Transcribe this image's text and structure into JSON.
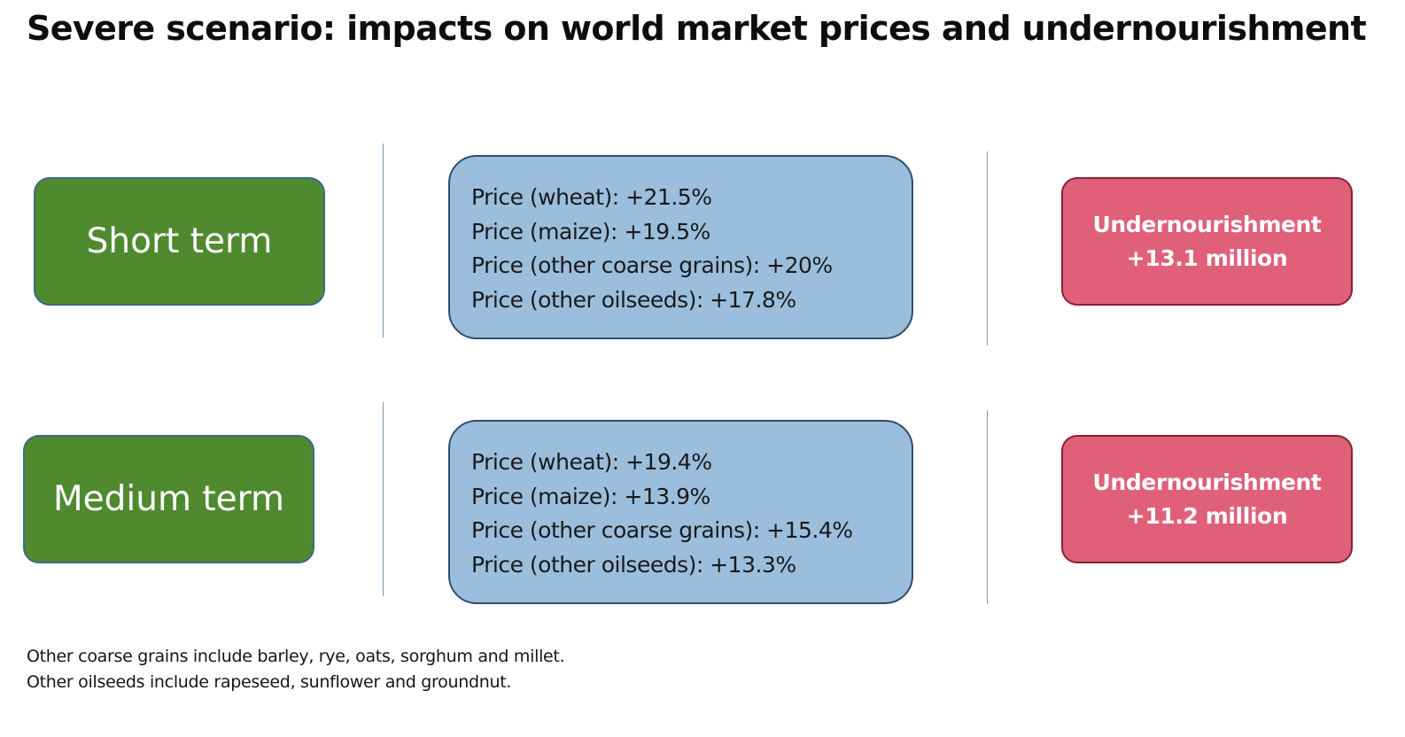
{
  "title": "Severe scenario: impacts on world market prices and undernourishment",
  "colors": {
    "term_box": "#4f8a2f",
    "price_box": "#9bbedd",
    "impact_box": "#e0607a"
  },
  "rows": [
    {
      "term": "Short term",
      "prices": [
        "Price (wheat): +21.5%",
        "Price (maize): +19.5%",
        "Price (other coarse grains): +20%",
        "Price (other oilseeds): +17.8%"
      ],
      "impact_label": "Undernourishment",
      "impact_value": "+13.1 million"
    },
    {
      "term": "Medium term",
      "prices": [
        "Price (wheat): +19.4%",
        "Price (maize): +13.9%",
        "Price (other coarse grains): +15.4%",
        "Price (other oilseeds): +13.3%"
      ],
      "impact_label": "Undernourishment",
      "impact_value": "+11.2 million"
    }
  ],
  "footnotes": [
    "Other coarse grains include barley, rye, oats, sorghum and millet.",
    "Other oilseeds include rapeseed, sunflower and groundnut."
  ]
}
